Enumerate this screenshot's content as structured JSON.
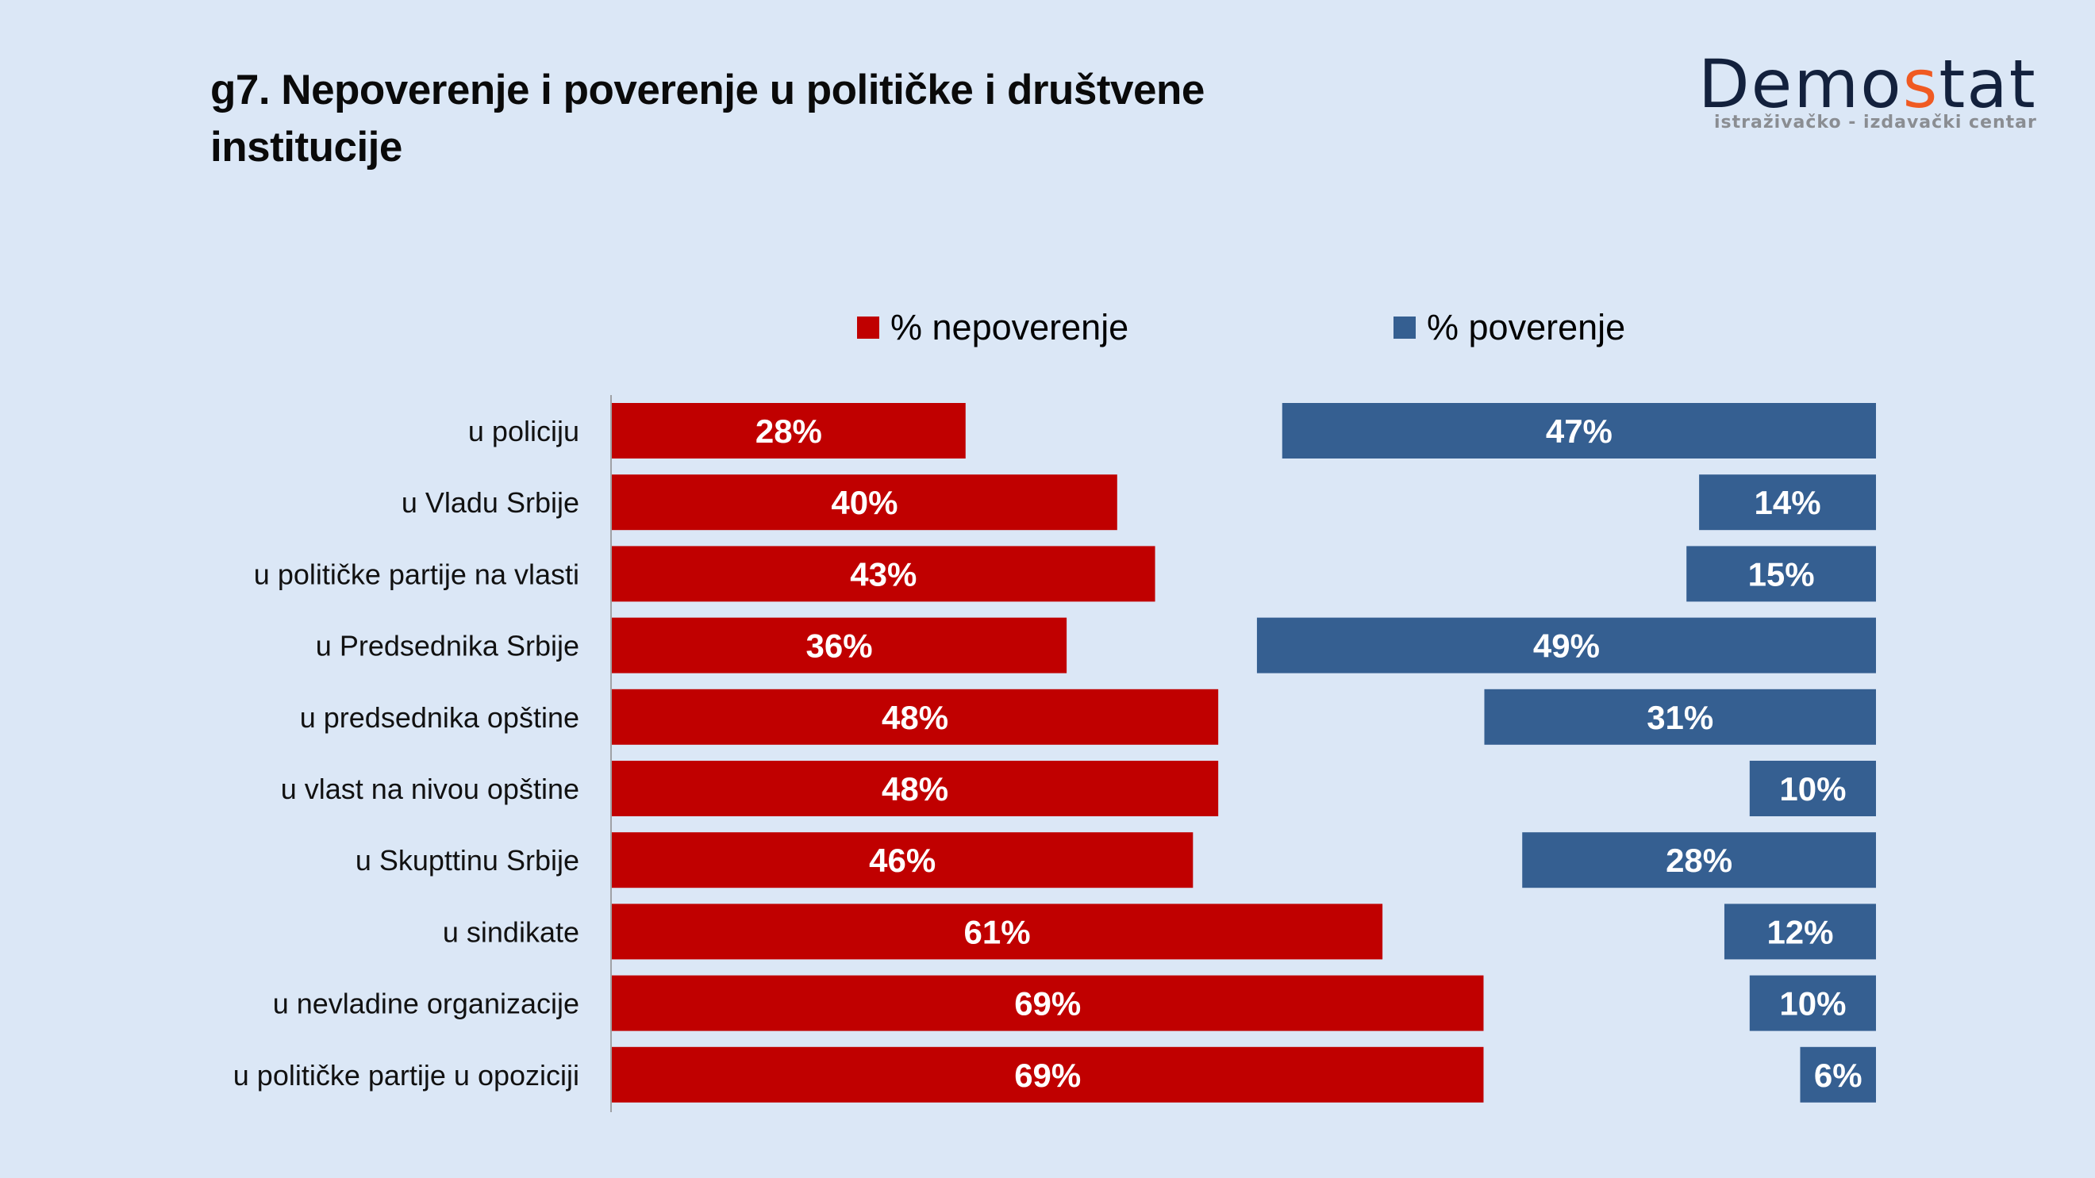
{
  "title": "g7. Nepoverenje i poverenje u političke i društvene institucije",
  "logo": {
    "word_part1": "Demo",
    "word_accent": "s",
    "word_part2": "tat",
    "subtitle": "istraživačko - izdavački  centar",
    "accent_color": "#f05a22",
    "main_color": "#13213d"
  },
  "chart_data": {
    "type": "bar",
    "orientation": "horizontal",
    "title": "g7. Nepoverenje i poverenje u političke i društvene institucije",
    "xlabel": "",
    "ylabel": "",
    "xlim": [
      0,
      100
    ],
    "grid": false,
    "legend_position": "top",
    "categories": [
      "u policiju",
      "u Vladu Srbije",
      "u političke partije na vlasti",
      "u Predsednika Srbije",
      "u predsednika opštine",
      "u vlast na nivou opštine",
      "u Skupttinu Srbije",
      "u sindikate",
      "u nevladine organizacije",
      "u političke partije u opoziciji"
    ],
    "series": [
      {
        "name": "% nepoverenje",
        "color": "#c00000",
        "values": [
          28,
          40,
          43,
          36,
          48,
          48,
          46,
          61,
          69,
          69
        ],
        "labels": [
          "28%",
          "40%",
          "43%",
          "36%",
          "48%",
          "48%",
          "46%",
          "61%",
          "69%",
          "69%"
        ]
      },
      {
        "name": "% poverenje",
        "color": "#355f91",
        "values": [
          47,
          14,
          15,
          49,
          31,
          10,
          28,
          12,
          10,
          6
        ],
        "labels": [
          "47%",
          "14%",
          "15%",
          "49%",
          "31%",
          "10%",
          "28%",
          "12%",
          "10%",
          "6%"
        ]
      }
    ]
  }
}
